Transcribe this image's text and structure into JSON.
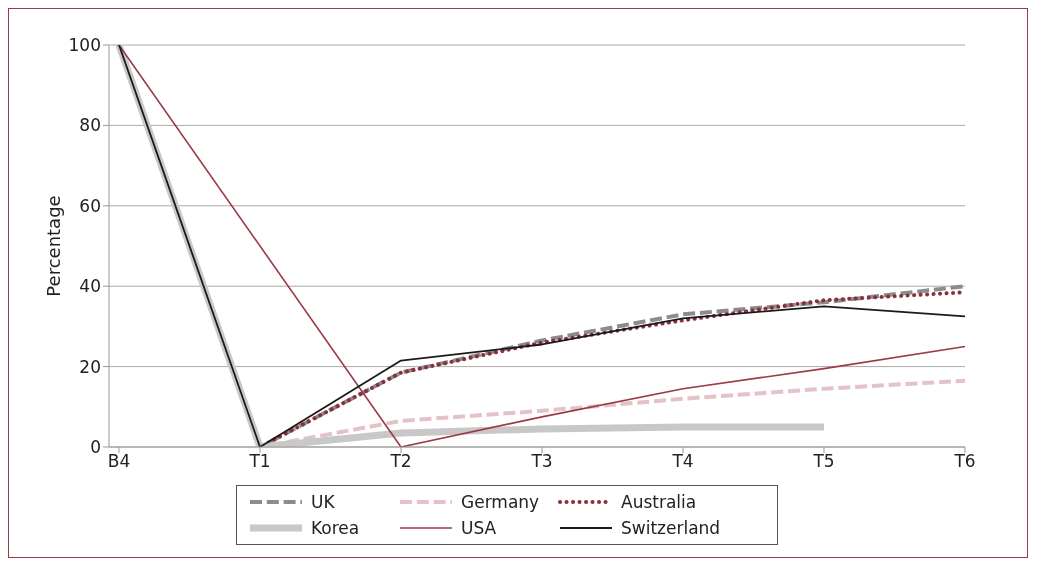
{
  "chart_data": {
    "type": "line",
    "ylabel": "Percentage",
    "categories": [
      "B4",
      "T1",
      "T2",
      "T3",
      "T4",
      "T5",
      "T6"
    ],
    "ylim": [
      0,
      100
    ],
    "yticks": [
      0,
      20,
      40,
      60,
      80,
      100
    ],
    "grid": "y",
    "legend": "bottom",
    "marker": "none",
    "series": [
      {
        "name": "UK",
        "color": "#8c8c8c",
        "line_style": "dashed",
        "values": [
          100,
          0,
          18.5,
          26.5,
          33,
          36,
          40
        ]
      },
      {
        "name": "Germany",
        "color": "#e3c3c5",
        "line_style": "dashed",
        "values": [
          100,
          0,
          6.5,
          9,
          12,
          14.5,
          16.5
        ]
      },
      {
        "name": "Australia",
        "color": "#8b2f3c",
        "line_style": "dotted",
        "values": [
          100,
          0,
          18.5,
          26,
          31.5,
          36.5,
          38.5
        ]
      },
      {
        "name": "Korea",
        "color": "#c8c8c8",
        "line_style": "solid",
        "values": [
          100,
          0,
          3.5,
          4.5,
          5,
          5,
          null
        ]
      },
      {
        "name": "USA",
        "color": "#9b3a45",
        "line_style": "solid",
        "values": [
          100,
          null,
          0,
          7.5,
          14.5,
          19.5,
          25
        ]
      },
      {
        "name": "Switzerland",
        "color": "#1a1a1a",
        "line_style": "solid",
        "values": [
          100,
          0,
          21.5,
          25.5,
          32,
          35,
          32.5
        ]
      }
    ]
  }
}
